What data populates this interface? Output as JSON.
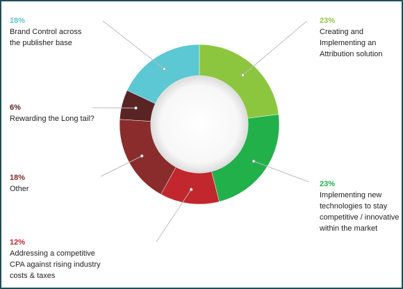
{
  "chart_data": {
    "type": "pie",
    "slices": [
      {
        "label": "Creating and\nImplementing an\nAttribution solution",
        "pct_text": "23%",
        "value": 23,
        "color": "#8cc63f"
      },
      {
        "label": "Implementing new\ntechnologies to stay\ncompetitive / innovative\nwithin the market",
        "pct_text": "23%",
        "value": 23,
        "color": "#22b04b"
      },
      {
        "label": "Addressing a competitive\nCPA against rising industry\ncosts & taxes",
        "pct_text": "12%",
        "value": 12,
        "color": "#c1272d"
      },
      {
        "label": "Other",
        "pct_text": "18%",
        "value": 18,
        "color": "#8a2c2c"
      },
      {
        "label": "Rewarding the Long tail?",
        "pct_text": "6%",
        "value": 6,
        "color": "#5a2424"
      },
      {
        "label": "Brand Control across\nthe publisher base",
        "pct_text": "18%",
        "value": 18,
        "color": "#5bc8d3"
      }
    ]
  }
}
